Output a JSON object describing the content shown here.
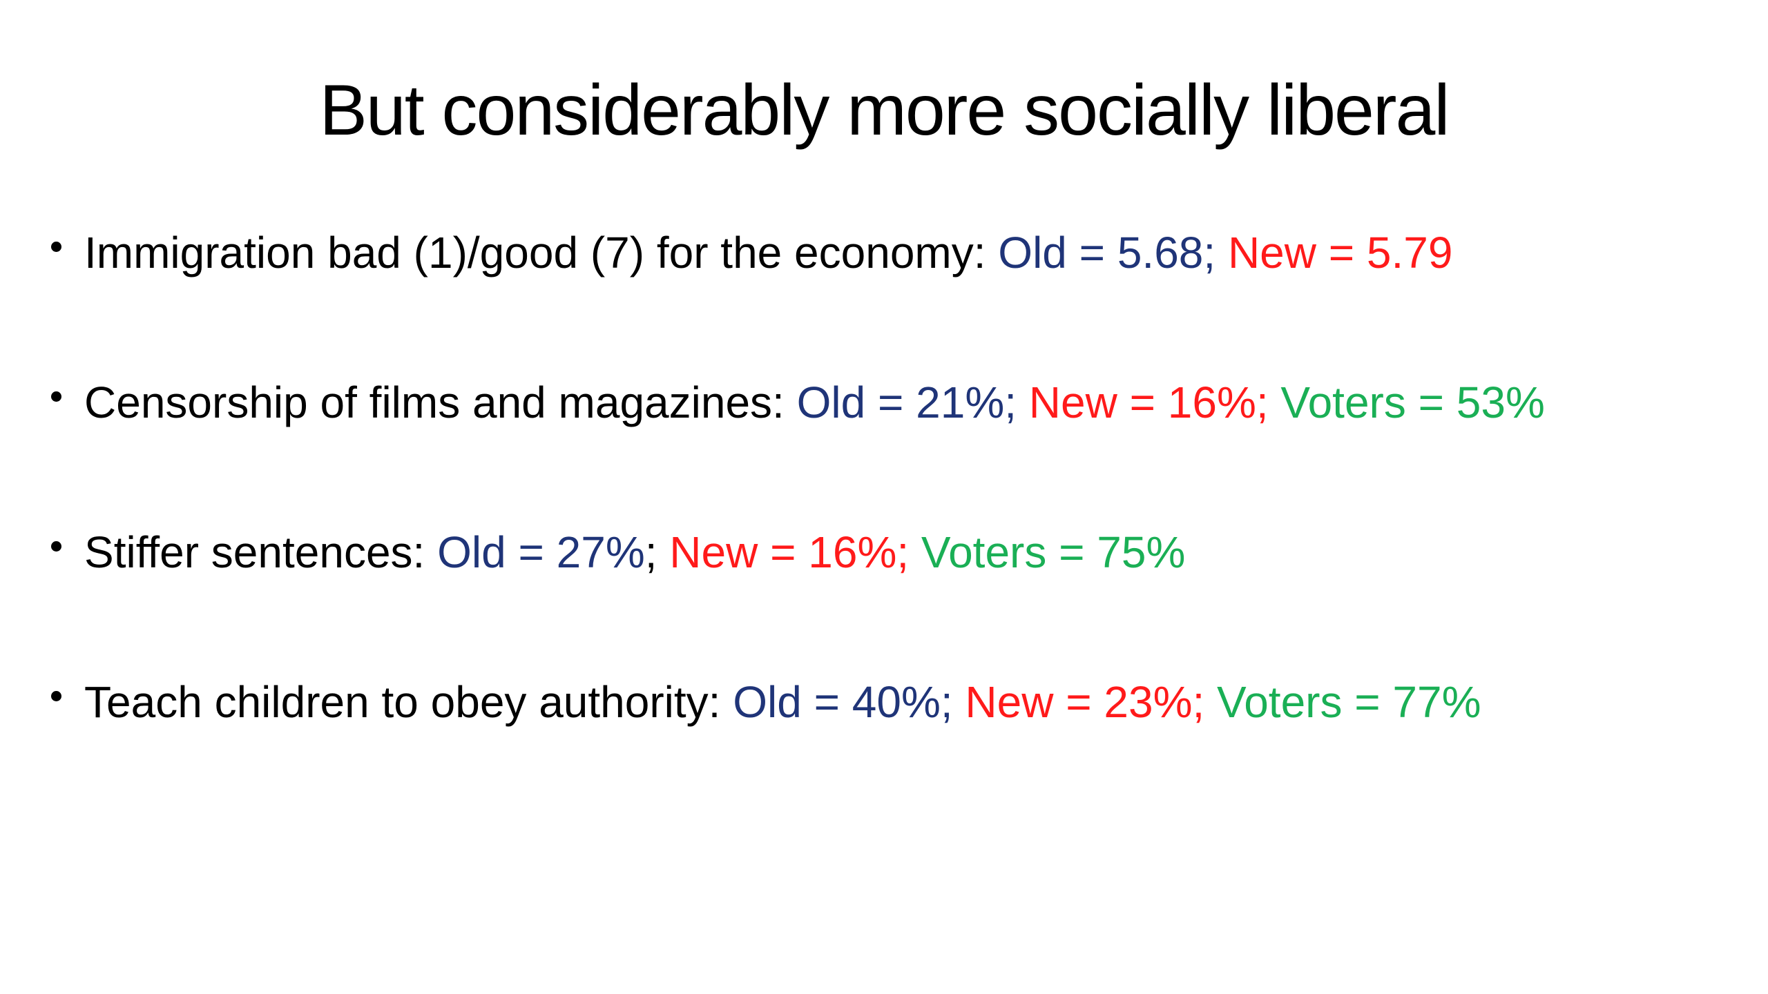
{
  "title": "But considerably more socially liberal",
  "colors": {
    "label": "#000000",
    "old": "#1f3478",
    "new": "#ff1a1a",
    "voters": "#1aaf55"
  },
  "bullets": [
    {
      "label": "Immigration bad (1)/good (7) for the economy: ",
      "old": "Old = 5.68;",
      "new": " New = 5.79",
      "voters": ""
    },
    {
      "label": "Censorship of films and magazines: ",
      "old": "Old = 21%;",
      "new": " New = 16%;",
      "voters": " Voters = 53%"
    },
    {
      "label": "Stiffer sentences: ",
      "old": "Old = 27%",
      "sep": ";",
      "new": " New = 16%;",
      "voters": " Voters = 75%"
    },
    {
      "label": "Teach children to obey authority: ",
      "old": "Old = 40%;",
      "new": " New = 23%;",
      "voters": " Voters = 77%"
    }
  ]
}
